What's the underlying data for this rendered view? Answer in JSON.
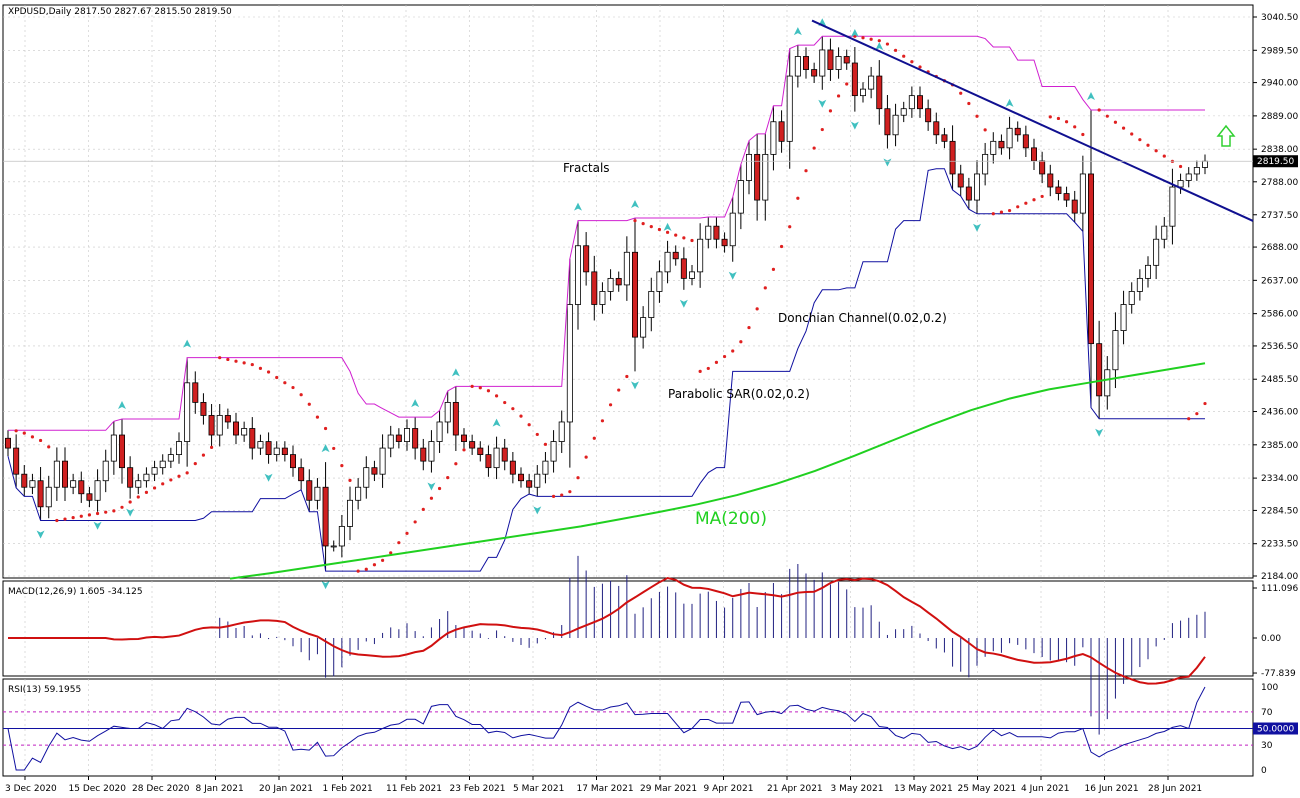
{
  "symbol_header": "XPDUSD,Daily  2817.50 2827.67 2815.50 2819.50",
  "colors": {
    "background": "#ffffff",
    "grid": "#c8c8c8",
    "bull_body": "#ffffff",
    "bear_body": "#d02020",
    "candle_outline": "#000000",
    "donchian_upper": "#d020d0",
    "donchian_lower": "#1010a0",
    "sar": "#e02020",
    "ma200": "#20d020",
    "trendline": "#101090",
    "fractal": "#40c0c0",
    "macd_hist": "#202080",
    "macd_signal": "#d01010",
    "rsi_line": "#1010a0",
    "rsi_level": "#c020c0",
    "arrow": "#30d030"
  },
  "annotations": {
    "fractals": "Fractals",
    "donchian": "Donchian Channel(0.02,0.2)",
    "sar": "Parabolic SAR(0.02,0.2)",
    "ma": "MA(200)"
  },
  "price_label": "2819.50",
  "chart_data": [
    {
      "type": "candlestick",
      "title": "XPDUSD,Daily",
      "ylim": [
        2184,
        3040.5
      ],
      "y_ticks": [
        "3040.50",
        "2989.50",
        "2940.00",
        "2889.00",
        "2838.00",
        "2788.00",
        "2737.50",
        "2688.00",
        "2637.00",
        "2586.00",
        "2536.50",
        "2485.50",
        "2436.00",
        "2385.00",
        "2334.00",
        "2284.50",
        "2233.50",
        "2184.00"
      ],
      "x_ticks": [
        "3 Dec 2020",
        "15 Dec 2020",
        "28 Dec 2020",
        "8 Jan 2021",
        "20 Jan 2021",
        "1 Feb 2021",
        "11 Feb 2021",
        "23 Feb 2021",
        "5 Mar 2021",
        "17 Mar 2021",
        "29 Mar 2021",
        "9 Apr 2021",
        "21 Apr 2021",
        "3 May 2021",
        "13 May 2021",
        "25 May 2021",
        "4 Jun 2021",
        "16 Jun 2021",
        "28 Jun 2021"
      ],
      "last_price": 2819.5,
      "close": [
        2380,
        2340,
        2320,
        2330,
        2290,
        2320,
        2360,
        2320,
        2330,
        2310,
        2300,
        2330,
        2360,
        2400,
        2350,
        2320,
        2330,
        2340,
        2350,
        2360,
        2370,
        2390,
        2480,
        2450,
        2430,
        2400,
        2430,
        2420,
        2400,
        2410,
        2380,
        2390,
        2370,
        2380,
        2370,
        2350,
        2330,
        2300,
        2320,
        2230,
        2230,
        2260,
        2300,
        2320,
        2350,
        2340,
        2380,
        2400,
        2390,
        2410,
        2380,
        2360,
        2390,
        2420,
        2450,
        2400,
        2390,
        2380,
        2370,
        2350,
        2380,
        2360,
        2340,
        2330,
        2320,
        2340,
        2360,
        2390,
        2420,
        2600,
        2690,
        2650,
        2600,
        2620,
        2640,
        2630,
        2680,
        2550,
        2580,
        2620,
        2650,
        2680,
        2670,
        2640,
        2650,
        2700,
        2720,
        2700,
        2690,
        2740,
        2790,
        2830,
        2760,
        2830,
        2880,
        2850,
        2950,
        2980,
        2960,
        2950,
        2990,
        2960,
        2980,
        2970,
        2920,
        2930,
        2950,
        2900,
        2860,
        2890,
        2900,
        2920,
        2900,
        2880,
        2860,
        2850,
        2800,
        2780,
        2760,
        2800,
        2830,
        2850,
        2840,
        2870,
        2860,
        2840,
        2820,
        2800,
        2780,
        2770,
        2760,
        2740,
        2800,
        2540,
        2460,
        2500,
        2560,
        2600,
        2620,
        2640,
        2660,
        2700,
        2720,
        2780,
        2790,
        2800,
        2810,
        2819.5
      ],
      "ma200": [
        2180,
        2188,
        2197,
        2206,
        2215,
        2224,
        2233,
        2242,
        2251,
        2260,
        2271,
        2282,
        2294,
        2308,
        2325,
        2345,
        2368,
        2392,
        2416,
        2438,
        2456,
        2470,
        2480,
        2490,
        2500,
        2510
      ],
      "donchian_upper_desc": "step line following highest high (20)",
      "parabolic_sar_desc": "red dot trail above/below price",
      "trendline": [
        [
          2940,
          3035
        ],
        [
          2960,
          2728
        ]
      ]
    },
    {
      "type": "bar+line",
      "title": "MACD(12,26,9) 1.605 -34.125",
      "y_ticks": [
        "111.096",
        "0.00",
        "-77.839"
      ],
      "ylim": [
        -90,
        120
      ]
    },
    {
      "type": "line",
      "title": "RSI(13) 59.1955",
      "y_ticks": [
        "100",
        "70",
        "50",
        "30",
        "0"
      ],
      "levels": [
        30,
        50,
        70
      ],
      "level_label": "50.0000",
      "ylim": [
        0,
        100
      ]
    }
  ]
}
